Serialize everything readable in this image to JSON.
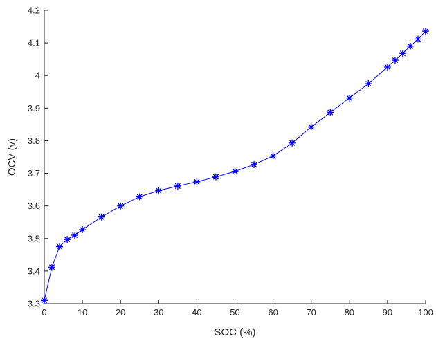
{
  "chart_data": {
    "type": "line",
    "title": "",
    "xlabel": "SOC (%)",
    "ylabel": "OCV (v)",
    "xlim": [
      0,
      100
    ],
    "ylim": [
      3.3,
      4.2
    ],
    "x_ticks": [
      0,
      10,
      20,
      30,
      40,
      50,
      60,
      70,
      80,
      90,
      100
    ],
    "y_ticks": [
      3.3,
      3.4,
      3.5,
      3.6,
      3.7,
      3.8,
      3.9,
      4,
      4.1,
      4.2
    ],
    "y_tick_labels": [
      "3.3",
      "3.4",
      "3.5",
      "3.6",
      "3.7",
      "3.8",
      "3.9",
      "4",
      "4.1",
      "4.2"
    ],
    "grid": false,
    "marker": "asterisk",
    "line_color": "#0000ff",
    "series": [
      {
        "x": [
          0,
          2,
          4,
          6,
          8,
          10,
          15,
          20,
          25,
          30,
          35,
          40,
          45,
          50,
          55,
          60,
          65,
          70,
          75,
          80,
          85,
          90,
          92,
          94,
          96,
          98,
          100
        ],
        "y": [
          3.31,
          3.412,
          3.475,
          3.497,
          3.51,
          3.527,
          3.566,
          3.6,
          3.628,
          3.647,
          3.661,
          3.674,
          3.689,
          3.706,
          3.727,
          3.753,
          3.793,
          3.842,
          3.887,
          3.931,
          3.975,
          4.026,
          4.047,
          4.068,
          4.09,
          4.112,
          4.136
        ]
      }
    ]
  }
}
